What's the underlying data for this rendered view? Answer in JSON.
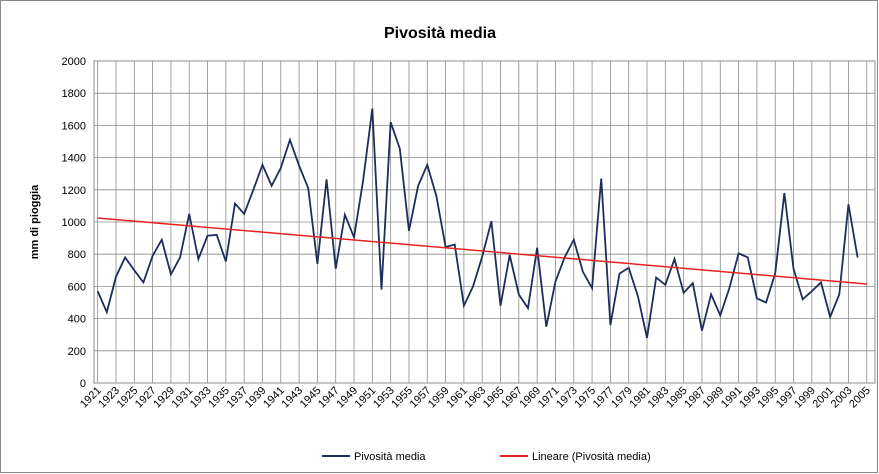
{
  "chart_data": {
    "type": "line",
    "title": "Pivosità media",
    "ylabel": "mm di pioggia",
    "x": [
      1921,
      1922,
      1923,
      1924,
      1925,
      1926,
      1927,
      1928,
      1929,
      1930,
      1931,
      1932,
      1933,
      1934,
      1935,
      1936,
      1937,
      1938,
      1939,
      1940,
      1941,
      1942,
      1943,
      1944,
      1945,
      1946,
      1947,
      1948,
      1949,
      1950,
      1951,
      1952,
      1953,
      1954,
      1955,
      1956,
      1957,
      1958,
      1959,
      1960,
      1961,
      1962,
      1963,
      1964,
      1965,
      1966,
      1967,
      1968,
      1969,
      1970,
      1971,
      1972,
      1973,
      1974,
      1975,
      1976,
      1977,
      1978,
      1979,
      1980,
      1981,
      1982,
      1983,
      1984,
      1985,
      1986,
      1987,
      1988,
      1989,
      1990,
      1991,
      1992,
      1993,
      1994,
      1995,
      1996,
      1997,
      1998,
      1999,
      2000,
      2001,
      2002,
      2003,
      2004
    ],
    "series": [
      {
        "name": "Pivosità media",
        "color": "#1f2d5c",
        "values": [
          570,
          440,
          660,
          780,
          700,
          625,
          790,
          890,
          675,
          780,
          1050,
          770,
          915,
          920,
          755,
          1115,
          1050,
          1200,
          1355,
          1225,
          1335,
          1510,
          1350,
          1210,
          740,
          1265,
          710,
          1045,
          905,
          1260,
          1705,
          580,
          1620,
          1455,
          945,
          1225,
          1355,
          1160,
          845,
          860,
          480,
          600,
          785,
          1005,
          480,
          795,
          550,
          465,
          840,
          350,
          630,
          780,
          890,
          690,
          590,
          1270,
          360,
          680,
          715,
          540,
          280,
          655,
          610,
          770,
          560,
          620,
          325,
          550,
          420,
          590,
          805,
          780,
          525,
          500,
          680,
          1180,
          710,
          520,
          570,
          625,
          410,
          550,
          1110,
          780
        ]
      },
      {
        "name": "Lineare (Pivosità media)",
        "color": "#e8231f",
        "x": [
          1921,
          2005
        ],
        "values": [
          1025,
          615
        ]
      }
    ],
    "xlim": [
      1920.6,
      2005.9
    ],
    "xticks": [
      1921,
      1923,
      1925,
      1927,
      1929,
      1931,
      1933,
      1935,
      1937,
      1939,
      1941,
      1943,
      1945,
      1947,
      1949,
      1951,
      1953,
      1955,
      1957,
      1959,
      1961,
      1963,
      1965,
      1967,
      1969,
      1971,
      1973,
      1975,
      1977,
      1979,
      1981,
      1983,
      1985,
      1987,
      1989,
      1991,
      1993,
      1995,
      1997,
      1999,
      2001,
      2003,
      2005
    ],
    "ylim": [
      0,
      2000
    ],
    "yticks": [
      0,
      200,
      400,
      600,
      800,
      1000,
      1200,
      1400,
      1600,
      1800,
      2000
    ],
    "grid": true,
    "legend": "bottom"
  }
}
